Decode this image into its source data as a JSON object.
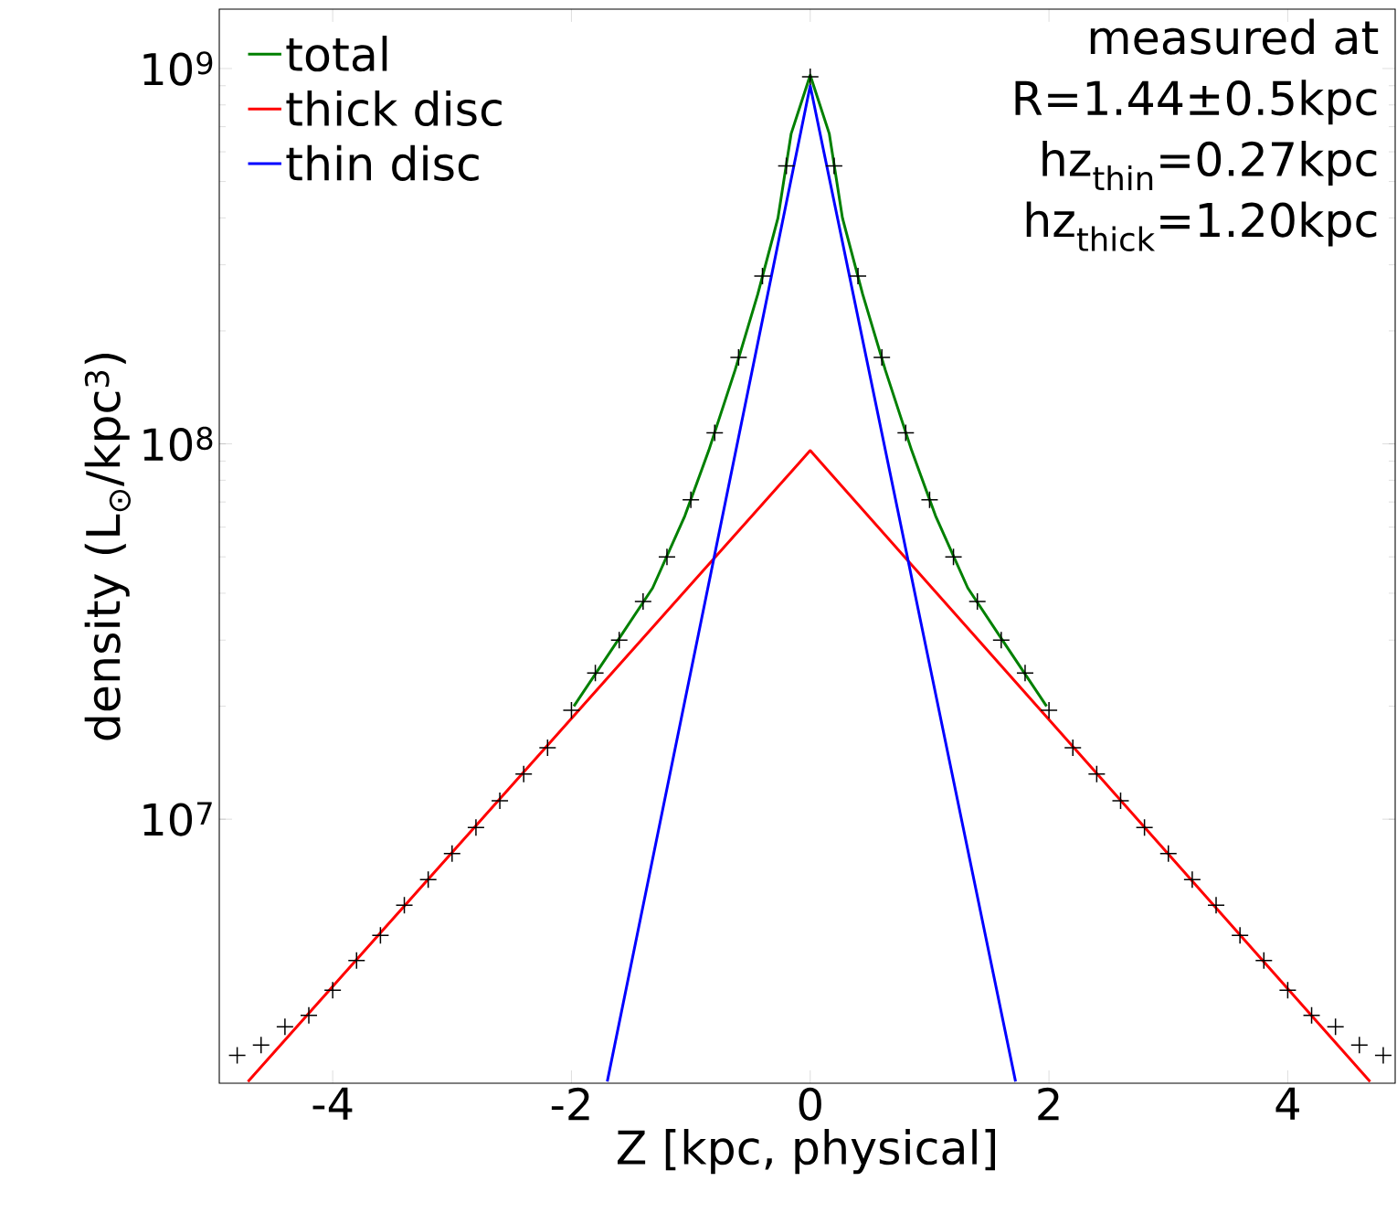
{
  "chart_data": {
    "type": "line",
    "xlabel": "Z [kpc, physical]",
    "ylabel": "density (L$_{⊙}$/kpc$^{3}$)",
    "annotations": [
      "measured at",
      "R=1.44±0.5kpc",
      "hz$_{thin}$=0.27kpc",
      "hz$_{thick}$=1.20kpc"
    ],
    "log": "y",
    "legend": "top left",
    "xlim": [
      -4.95,
      4.9
    ],
    "ylim": [
      1980000,
      1440000000
    ],
    "xticks": [
      -4,
      -2,
      0,
      2,
      4
    ],
    "yticks": [
      {
        "value": 10000000,
        "label": "10$^{7}$"
      },
      {
        "value": 100000000,
        "label": "10$^{8}$"
      },
      {
        "value": 1000000000,
        "label": "10$^{9}$"
      }
    ],
    "series": [
      {
        "name": "total",
        "color": "#008000",
        "x": [
          -1.98,
          -1.65,
          -1.32,
          -1.05,
          -0.85,
          -0.63,
          -0.44,
          -0.27,
          -0.16,
          0,
          0.16,
          0.27,
          0.44,
          0.63,
          0.85,
          1.05,
          1.32,
          1.65,
          1.98
        ],
        "values": [
          20000000,
          28700000,
          41300000,
          64300000,
          96000000,
          157000000,
          250000000,
          400000000,
          670000000,
          960000000,
          670000000,
          400000000,
          250000000,
          157000000,
          96000000,
          64300000,
          41300000,
          28700000,
          20000000
        ]
      },
      {
        "name": "thick disc",
        "color": "#ff0000",
        "x": [
          -4.71,
          0,
          4.69
        ],
        "values": [
          2000000,
          96000000,
          2000000
        ]
      },
      {
        "name": "thin disc",
        "color": "#0000ff",
        "x": [
          -1.7,
          0,
          1.72
        ],
        "values": [
          2000000,
          900000000,
          2000000
        ]
      },
      {
        "type": "scatter",
        "marker": "cross",
        "color": "#000000",
        "x": [
          -4.8,
          -4.6,
          -4.4,
          -4.2,
          -4.0,
          -3.8,
          -3.6,
          -3.4,
          -3.2,
          -3.0,
          -2.8,
          -2.6,
          -2.4,
          -2.2,
          -2.0,
          -1.8,
          -1.6,
          -1.4,
          -1.2,
          -1.0,
          -0.8,
          -0.6,
          -0.4,
          -0.2,
          0,
          0.2,
          0.4,
          0.6,
          0.8,
          1.0,
          1.2,
          1.4,
          1.6,
          1.8,
          2.0,
          2.2,
          2.4,
          2.6,
          2.8,
          3.0,
          3.2,
          3.4,
          3.6,
          3.8,
          4.0,
          4.2,
          4.4,
          4.6,
          4.8
        ],
        "values": [
          2350000,
          2500000,
          2800000,
          3000000,
          3500000,
          4200000,
          4900000,
          5900000,
          6900000,
          8100000,
          9500000,
          11200000,
          13200000,
          15500000,
          19500000,
          24500000,
          30000000,
          38000000,
          50000000,
          71000000,
          107000000,
          170000000,
          280000000,
          550000000,
          950000000,
          550000000,
          280000000,
          170000000,
          107000000,
          71000000,
          50000000,
          38000000,
          30000000,
          24500000,
          19500000,
          15500000,
          13200000,
          11200000,
          9500000,
          8100000,
          6900000,
          5900000,
          4900000,
          4200000,
          3500000,
          3000000,
          2800000,
          2500000,
          2350000
        ]
      }
    ]
  }
}
